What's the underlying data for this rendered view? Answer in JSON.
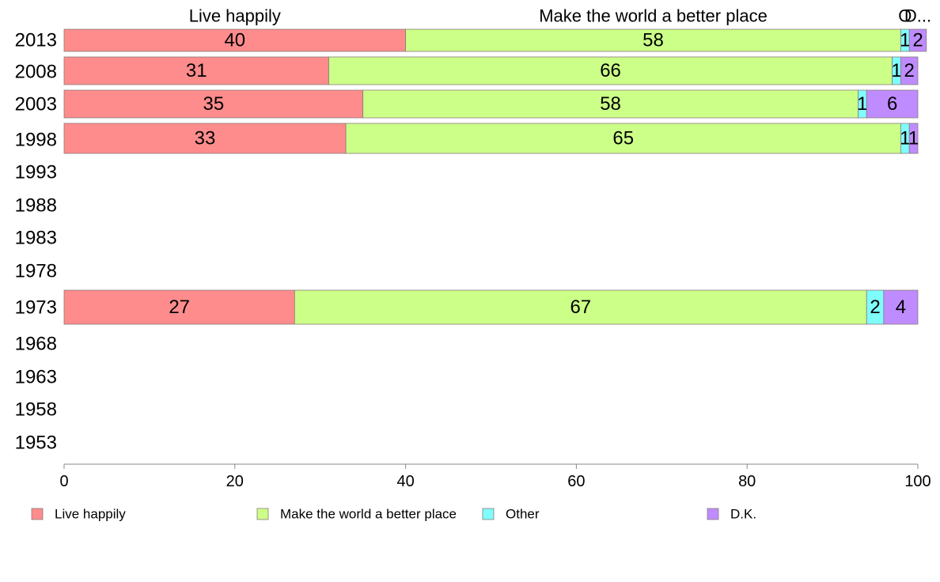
{
  "chart_data": {
    "type": "bar",
    "orientation": "horizontal",
    "stacked": true,
    "categories": [
      "2013",
      "2008",
      "2003",
      "1998",
      "1993",
      "1988",
      "1983",
      "1978",
      "1973",
      "1968",
      "1963",
      "1958",
      "1953"
    ],
    "series": [
      {
        "name": "Live happily",
        "color": "#ff8c8c",
        "values": [
          40,
          31,
          35,
          33,
          null,
          null,
          null,
          null,
          27,
          null,
          null,
          null,
          null
        ]
      },
      {
        "name": "Make the world a better place",
        "color": "#ccff88",
        "values": [
          58,
          66,
          58,
          65,
          null,
          null,
          null,
          null,
          67,
          null,
          null,
          null,
          null
        ]
      },
      {
        "name": "Other",
        "color": "#7ffcfc",
        "values": [
          1,
          1,
          1,
          1,
          null,
          null,
          null,
          null,
          2,
          null,
          null,
          null,
          null
        ]
      },
      {
        "name": "D.K.",
        "color": "#bf8cff",
        "values": [
          2,
          2,
          6,
          1,
          null,
          null,
          null,
          null,
          4,
          null,
          null,
          null,
          null
        ]
      }
    ],
    "column_headers": [
      "Live happily",
      "Make the world a better place",
      "O",
      "D..."
    ],
    "x_ticks": [
      "0",
      "20",
      "40",
      "60",
      "80",
      "100"
    ],
    "xlim": [
      0,
      100
    ],
    "grid": false,
    "legend_position": "bottom",
    "title": "",
    "xlabel": "",
    "ylabel": ""
  }
}
